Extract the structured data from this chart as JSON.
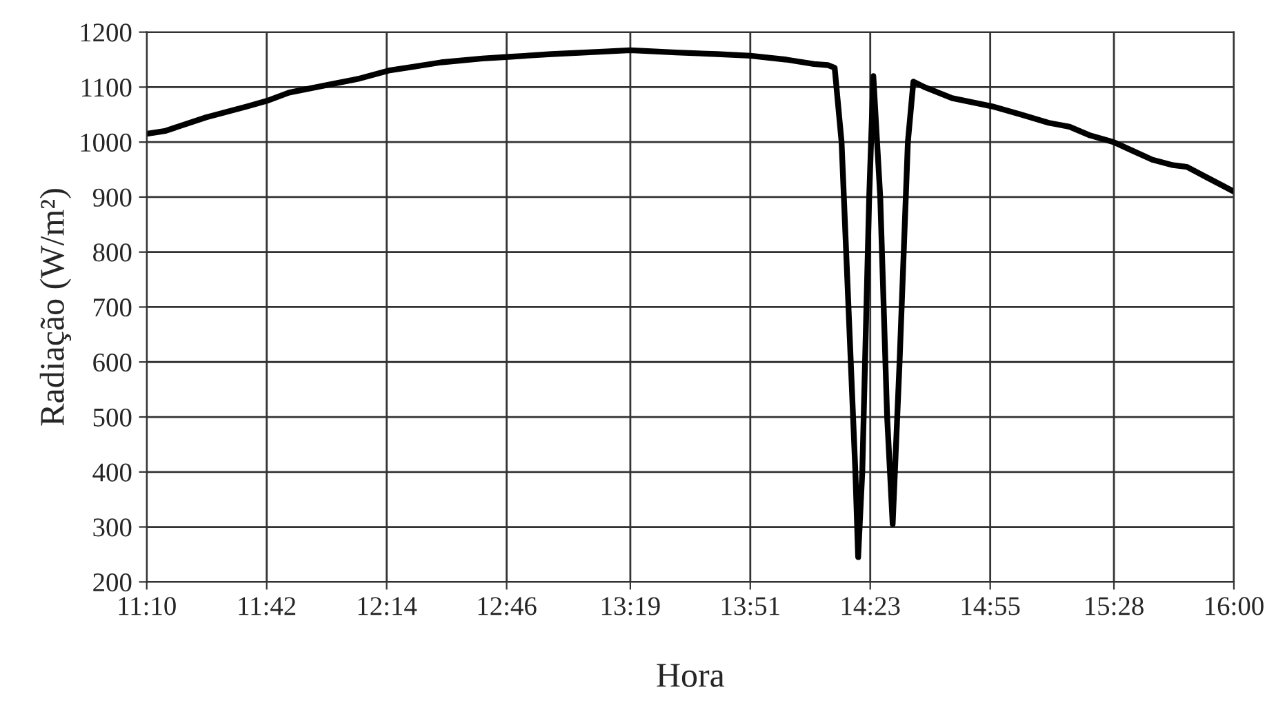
{
  "chart_data": {
    "type": "line",
    "xlabel": "Hora",
    "ylabel": "Radiação (W/m²)",
    "x": [
      11.1667,
      11.2465,
      11.4308,
      11.615,
      11.701,
      11.7993,
      11.9835,
      12.1063,
      12.2414,
      12.352,
      12.4748,
      12.659,
      12.7757,
      12.9661,
      13.2118,
      13.3162,
      13.5188,
      13.7031,
      13.8505,
      14.0102,
      14.133,
      14.1944,
      14.2251,
      14.2558,
      14.2865,
      14.3172,
      14.3295,
      14.3479,
      14.3786,
      14.397,
      14.4277,
      14.4584,
      14.483,
      14.5137,
      14.5506,
      14.5751,
      14.6243,
      14.7471,
      14.9252,
      15.0541,
      15.177,
      15.2691,
      15.3612,
      15.4656,
      15.5454,
      15.6375,
      15.7296,
      15.791,
      15.8831,
      16.0
    ],
    "series": [
      {
        "color": "#000000",
        "values": [
          1015,
          1020,
          1045,
          1065,
          1075,
          1090,
          1105,
          1115,
          1130,
          1137,
          1145,
          1152,
          1155,
          1160,
          1165,
          1167,
          1163,
          1160,
          1157,
          1150,
          1142,
          1140,
          1135,
          1000,
          700,
          400,
          245,
          400,
          900,
          1120,
          900,
          500,
          305,
          600,
          1000,
          1110,
          1100,
          1080,
          1065,
          1050,
          1035,
          1028,
          1012,
          1000,
          985,
          968,
          958,
          955,
          935,
          910
        ]
      }
    ],
    "xlim": [
      11.1667,
      16.0
    ],
    "xticks": [
      {
        "value": 11.1667,
        "label": "11:10"
      },
      {
        "value": 11.7,
        "label": "11:42"
      },
      {
        "value": 12.2333,
        "label": "12:14"
      },
      {
        "value": 12.7667,
        "label": "12:46"
      },
      {
        "value": 13.3167,
        "label": "13:19"
      },
      {
        "value": 13.85,
        "label": "13:51"
      },
      {
        "value": 14.3833,
        "label": "14:23"
      },
      {
        "value": 14.9167,
        "label": "14:55"
      },
      {
        "value": 15.4667,
        "label": "15:28"
      },
      {
        "value": 16.0,
        "label": "16:00"
      }
    ],
    "ylim": [
      200,
      1200
    ],
    "yticks": [
      200,
      300,
      400,
      500,
      600,
      700,
      800,
      900,
      1000,
      1100,
      1200
    ],
    "grid": true,
    "line_style": "solid",
    "marker": "none"
  }
}
